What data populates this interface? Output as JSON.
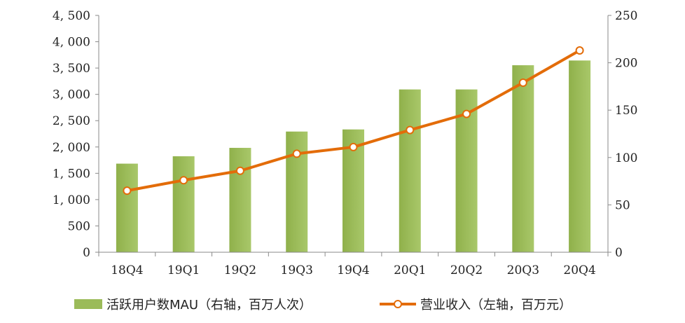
{
  "chart_data": {
    "type": "bar+line",
    "categories": [
      "18Q4",
      "19Q1",
      "19Q2",
      "19Q3",
      "19Q4",
      "20Q1",
      "20Q2",
      "20Q3",
      "20Q4"
    ],
    "series": [
      {
        "name": "活跃用户数MAU（右轴，百万人次）",
        "type": "bar",
        "axis": "left",
        "color": "#9bbb59",
        "values": [
          1690,
          1830,
          1990,
          2300,
          2340,
          3100,
          3100,
          3560,
          3650
        ]
      },
      {
        "name": "营业收入（左轴，百万元）",
        "type": "line",
        "axis": "right",
        "color": "#e36c09",
        "values": [
          65,
          76,
          86,
          104,
          111,
          129,
          146,
          179,
          213
        ]
      }
    ],
    "left_axis": {
      "ylim": [
        0,
        4500
      ],
      "ticks": [
        0,
        500,
        1000,
        1500,
        2000,
        2500,
        3000,
        3500,
        4000,
        4500
      ],
      "tick_labels": [
        "0",
        "500",
        "1, 000",
        "1, 500",
        "2, 000",
        "2, 500",
        "3, 000",
        "3, 500",
        "4, 000",
        "4, 500"
      ]
    },
    "right_axis": {
      "ylim": [
        0,
        250
      ],
      "ticks": [
        0,
        50,
        100,
        150,
        200,
        250
      ],
      "tick_labels": [
        "0",
        "50",
        "100",
        "150",
        "200",
        "250"
      ]
    },
    "legend": {
      "position": "bottom",
      "bar_label": "活跃用户数MAU（右轴，百万人次）",
      "line_label": "营业收入（左轴，百万元）"
    },
    "grid": false
  }
}
